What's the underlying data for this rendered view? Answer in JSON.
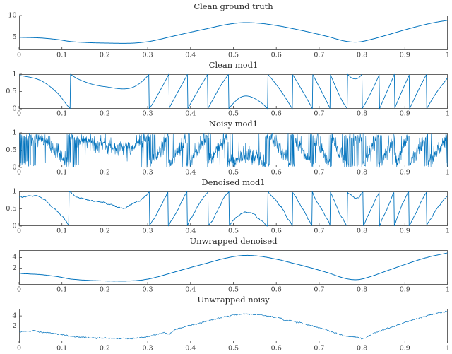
{
  "figure": {
    "background": "#ffffff",
    "line_color": "#0072BD",
    "axis_color": "#404040",
    "label_color": "#3a3a3a"
  },
  "x_axis": {
    "lim": [
      0,
      1
    ],
    "tick_values": [
      0,
      0.1,
      0.2,
      0.3,
      0.4,
      0.5,
      0.6,
      0.7,
      0.8,
      0.9,
      1
    ],
    "tick_labels": [
      "0",
      "0.1",
      "0.2",
      "0.3",
      "0.4",
      "0.5",
      "0.6",
      "0.7",
      "0.8",
      "0.9",
      "1"
    ]
  },
  "base_signal": {
    "description": "underlying unwrapped phase signal (keypoints, interpolated)",
    "keypoints_x": [
      0,
      0.05,
      0.09,
      0.12,
      0.16,
      0.2,
      0.26,
      0.3,
      0.33,
      0.36,
      0.4,
      0.44,
      0.48,
      0.52,
      0.56,
      0.6,
      0.64,
      0.68,
      0.72,
      0.76,
      0.79,
      0.82,
      0.86,
      0.9,
      0.94,
      0.97,
      1.0
    ],
    "keypoints_y": [
      0.97,
      0.82,
      0.45,
      0.0,
      -0.25,
      -0.36,
      -0.4,
      -0.05,
      0.55,
      1.25,
      2.15,
      3.0,
      3.85,
      4.35,
      4.22,
      3.7,
      2.95,
      2.1,
      1.15,
      0.1,
      -0.12,
      0.45,
      1.55,
      2.7,
      3.75,
      4.4,
      4.9
    ]
  },
  "chart_data": [
    {
      "type": "line",
      "title": "Clean ground truth",
      "ylim": [
        2,
        10
      ],
      "ytick_values": [
        5,
        10
      ],
      "ytick_labels": [
        "5",
        "10"
      ],
      "offset": 4,
      "mod": false,
      "n": 600,
      "noise_sigma": 0,
      "noise_smooth": 0,
      "seed": 1,
      "line_width": 1.0
    },
    {
      "type": "line",
      "title": "Clean mod1",
      "ylim": [
        0,
        1
      ],
      "ytick_values": [
        0,
        0.5,
        1
      ],
      "ytick_labels": [
        "0",
        "0.5",
        "1"
      ],
      "offset": 4,
      "mod": true,
      "n": 900,
      "noise_sigma": 0,
      "noise_smooth": 0,
      "seed": 2,
      "line_width": 0.9
    },
    {
      "type": "line",
      "title": "Noisy mod1",
      "ylim": [
        0,
        1
      ],
      "ytick_values": [
        0,
        0.5,
        1
      ],
      "ytick_labels": [
        "0",
        "0.5",
        "1"
      ],
      "offset": 4,
      "mod": true,
      "n": 1500,
      "noise_sigma": 0.13,
      "noise_smooth": 0,
      "seed": 7,
      "line_width": 0.55
    },
    {
      "type": "line",
      "title": "Denoised mod1",
      "ylim": [
        0,
        1
      ],
      "ytick_values": [
        0,
        0.5,
        1
      ],
      "ytick_labels": [
        "0",
        "0.5",
        "1"
      ],
      "offset": 4,
      "mod": true,
      "n": 900,
      "noise_sigma": 0.035,
      "noise_smooth": 25,
      "seed": 11,
      "line_width": 0.9
    },
    {
      "type": "line",
      "title": "Unwrapped denoised",
      "ylim": [
        -1.1,
        5.4
      ],
      "ytick_values": [
        2,
        4
      ],
      "ytick_labels": [
        "2",
        "4"
      ],
      "offset": 0,
      "mod": false,
      "n": 700,
      "noise_sigma": 0.02,
      "noise_smooth": 40,
      "seed": 3,
      "line_width": 1.0
    },
    {
      "type": "line",
      "title": "Unwrapped noisy",
      "ylim": [
        -1.4,
        5.4
      ],
      "ytick_values": [
        2,
        4
      ],
      "ytick_labels": [
        "2",
        "4"
      ],
      "offset": 0,
      "mod": false,
      "n": 1300,
      "noise_sigma": 0.06,
      "noise_smooth": 3,
      "seed": 5,
      "line_width": 0.7,
      "artifacts": [
        {
          "x": 0.035,
          "amp": 0.3,
          "w": 0.004
        },
        {
          "x": 0.35,
          "amp": -0.5,
          "w": 0.006
        },
        {
          "x": 0.62,
          "amp": -0.22,
          "w": 0.005
        },
        {
          "x": 0.805,
          "amp": -0.55,
          "w": 0.008
        }
      ]
    }
  ]
}
